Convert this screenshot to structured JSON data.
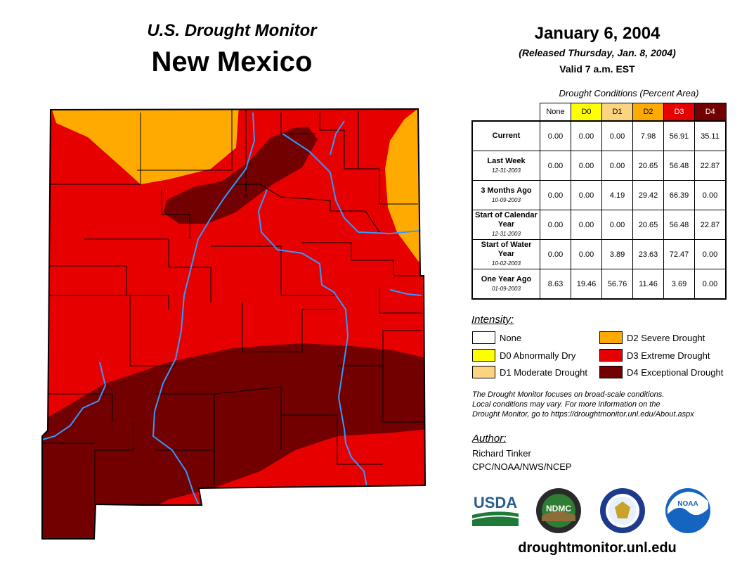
{
  "header": {
    "subtitle": "U.S. Drought Monitor",
    "state": "New Mexico",
    "date": "January 6, 2004",
    "released": "(Released Thursday, Jan. 8, 2004)",
    "valid": "Valid 7 a.m. EST"
  },
  "table": {
    "caption": "Drought Conditions (Percent Area)",
    "columns": [
      "None",
      "D0",
      "D1",
      "D2",
      "D3",
      "D4"
    ],
    "column_colors": [
      "#ffffff",
      "#ffff00",
      "#fcd37f",
      "#ffaa00",
      "#e60000",
      "#730000"
    ],
    "column_text_colors": [
      "#000000",
      "#000000",
      "#000000",
      "#000000",
      "#ffffff",
      "#ffffff"
    ],
    "rows": [
      {
        "label": "Current",
        "date": "",
        "values": [
          "0.00",
          "0.00",
          "0.00",
          "7.98",
          "56.91",
          "35.11"
        ]
      },
      {
        "label": "Last Week",
        "date": "12-31-2003",
        "values": [
          "0.00",
          "0.00",
          "0.00",
          "20.65",
          "56.48",
          "22.87"
        ]
      },
      {
        "label": "3 Months Ago",
        "date": "10-09-2003",
        "values": [
          "0.00",
          "0.00",
          "4.19",
          "29.42",
          "66.39",
          "0.00"
        ]
      },
      {
        "label": "Start of Calendar Year",
        "date": "12-31-2003",
        "values": [
          "0.00",
          "0.00",
          "0.00",
          "20.65",
          "56.48",
          "22.87"
        ]
      },
      {
        "label": "Start of Water Year",
        "date": "10-02-2003",
        "values": [
          "0.00",
          "0.00",
          "3.89",
          "23.63",
          "72.47",
          "0.00"
        ]
      },
      {
        "label": "One Year Ago",
        "date": "01-09-2003",
        "values": [
          "8.63",
          "19.46",
          "56.76",
          "11.46",
          "3.69",
          "0.00"
        ]
      }
    ]
  },
  "legend": {
    "title": "Intensity:",
    "items": [
      {
        "label": "None",
        "color": "#ffffff"
      },
      {
        "label": "D0 Abnormally Dry",
        "color": "#ffff00"
      },
      {
        "label": "D1 Moderate Drought",
        "color": "#fcd37f"
      },
      {
        "label": "D2 Severe Drought",
        "color": "#ffaa00"
      },
      {
        "label": "D3 Extreme Drought",
        "color": "#e60000"
      },
      {
        "label": "D4 Exceptional Drought",
        "color": "#730000"
      }
    ]
  },
  "note": {
    "line1": "The Drought Monitor focuses on broad-scale conditions.",
    "line2": "Local conditions may vary. For more information on the",
    "line3": "Drought Monitor, go to https://droughtmonitor.unl.edu/About.aspx"
  },
  "author": {
    "title": "Author:",
    "name": "Richard Tinker",
    "org": "CPC/NOAA/NWS/NCEP"
  },
  "logos": {
    "usda": "USDA",
    "ndmc": "NDMC",
    "noaa": "NOAA"
  },
  "site": "droughtmonitor.unl.edu",
  "map": {
    "river_color": "#3399ff",
    "border_color": "#000000"
  }
}
